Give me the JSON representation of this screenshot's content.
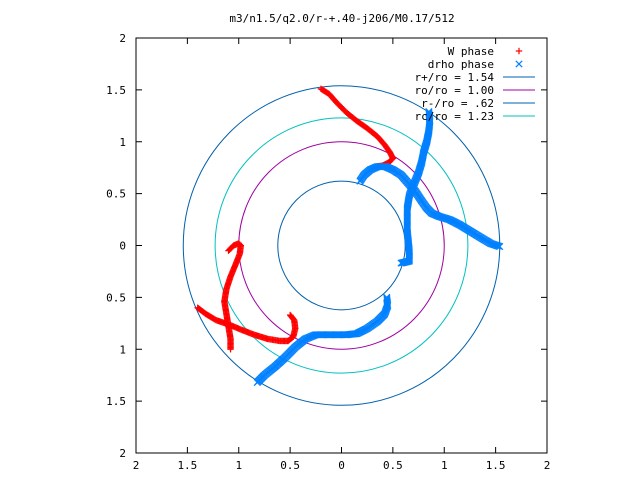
{
  "chart_data": {
    "type": "scatter",
    "title": "m3/n1.5/q2.0/r-+.40-j206/M0.17/512",
    "xlabel": "",
    "ylabel": "",
    "xlim": [
      2,
      -2
    ],
    "ylim": [
      -2,
      2
    ],
    "x_tick_labels": [
      "2",
      "1.5",
      "1",
      "0.5",
      "0",
      "0.5",
      "1",
      "1.5",
      "2"
    ],
    "y_tick_labels": [
      "2",
      "1.5",
      "1",
      "0.5",
      "0",
      "0.5",
      "1",
      "1.5",
      "2"
    ],
    "grid": false,
    "legend_position": "top-right",
    "series": [
      {
        "name": "W phase",
        "marker": "plus",
        "color": "#ff0000",
        "arms": [
          [
            [
              0.2,
              1.51
            ],
            [
              0.12,
              1.46
            ],
            [
              0.05,
              1.38
            ],
            [
              -0.05,
              1.28
            ],
            [
              -0.15,
              1.2
            ],
            [
              -0.25,
              1.13
            ],
            [
              -0.35,
              1.05
            ],
            [
              -0.42,
              0.97
            ],
            [
              -0.47,
              0.9
            ],
            [
              -0.5,
              0.84
            ]
          ],
          [
            [
              -0.5,
              0.84
            ],
            [
              -0.46,
              0.8
            ],
            [
              -0.4,
              0.77
            ],
            [
              -0.33,
              0.76
            ]
          ],
          [
            [
              1.08,
              -1.0
            ],
            [
              1.08,
              -0.9
            ],
            [
              1.1,
              -0.78
            ],
            [
              1.12,
              -0.66
            ],
            [
              1.14,
              -0.54
            ],
            [
              1.12,
              -0.42
            ],
            [
              1.08,
              -0.3
            ],
            [
              1.03,
              -0.18
            ],
            [
              0.99,
              -0.08
            ],
            [
              0.98,
              0.0
            ],
            [
              1.0,
              0.02
            ],
            [
              1.05,
              0.0
            ],
            [
              1.1,
              -0.05
            ]
          ],
          [
            [
              1.4,
              -0.6
            ],
            [
              1.32,
              -0.66
            ],
            [
              1.22,
              -0.72
            ],
            [
              1.1,
              -0.76
            ],
            [
              0.98,
              -0.81
            ],
            [
              0.85,
              -0.86
            ],
            [
              0.72,
              -0.9
            ],
            [
              0.6,
              -0.92
            ],
            [
              0.52,
              -0.92
            ],
            [
              0.47,
              -0.88
            ],
            [
              0.45,
              -0.8
            ],
            [
              0.46,
              -0.72
            ],
            [
              0.5,
              -0.67
            ]
          ]
        ]
      },
      {
        "name": "drho phase",
        "marker": "cross",
        "color": "#0080ff",
        "arms": [
          [
            [
              -0.85,
              1.29
            ],
            [
              -0.86,
              1.2
            ],
            [
              -0.85,
              1.1
            ],
            [
              -0.83,
              1.0
            ],
            [
              -0.8,
              0.9
            ],
            [
              -0.78,
              0.8
            ],
            [
              -0.75,
              0.7
            ],
            [
              -0.7,
              0.58
            ],
            [
              -0.66,
              0.48
            ],
            [
              -0.64,
              0.36
            ],
            [
              -0.64,
              0.25
            ],
            [
              -0.64,
              0.14
            ],
            [
              -0.65,
              0.04
            ],
            [
              -0.66,
              -0.06
            ],
            [
              -0.66,
              -0.15
            ]
          ],
          [
            [
              -0.66,
              -0.15
            ],
            [
              -0.62,
              -0.16
            ],
            [
              -0.58,
              -0.17
            ]
          ],
          [
            [
              -0.18,
              0.62
            ],
            [
              -0.22,
              0.68
            ],
            [
              -0.28,
              0.73
            ],
            [
              -0.35,
              0.76
            ],
            [
              -0.43,
              0.76
            ],
            [
              -0.5,
              0.73
            ],
            [
              -0.58,
              0.68
            ],
            [
              -0.65,
              0.6
            ],
            [
              -0.72,
              0.52
            ],
            [
              -0.78,
              0.43
            ],
            [
              -0.83,
              0.36
            ],
            [
              -0.88,
              0.31
            ],
            [
              -0.95,
              0.28
            ],
            [
              -1.05,
              0.25
            ],
            [
              -1.15,
              0.2
            ],
            [
              -1.25,
              0.14
            ],
            [
              -1.35,
              0.08
            ],
            [
              -1.45,
              0.02
            ],
            [
              -1.54,
              -0.01
            ]
          ],
          [
            [
              0.82,
              -1.32
            ],
            [
              0.75,
              -1.25
            ],
            [
              0.65,
              -1.17
            ],
            [
              0.55,
              -1.08
            ],
            [
              0.45,
              -0.98
            ],
            [
              0.35,
              -0.9
            ],
            [
              0.25,
              -0.86
            ],
            [
              0.15,
              -0.86
            ],
            [
              0.05,
              -0.86
            ],
            [
              -0.05,
              -0.86
            ],
            [
              -0.15,
              -0.85
            ],
            [
              -0.25,
              -0.8
            ],
            [
              -0.35,
              -0.73
            ],
            [
              -0.42,
              -0.66
            ],
            [
              -0.45,
              -0.58
            ],
            [
              -0.44,
              -0.5
            ]
          ]
        ]
      }
    ],
    "circles": [
      {
        "label": "r+/ro = 1.54",
        "radius": 1.54,
        "color": "#0060ad"
      },
      {
        "label": "ro/ro = 1.00",
        "radius": 1.0,
        "color": "#a000a0"
      },
      {
        "label": "r-/ro = .62",
        "radius": 0.62,
        "color": "#0060ad"
      },
      {
        "label": "rc/ro = 1.23",
        "radius": 1.23,
        "color": "#00c0c0"
      }
    ]
  }
}
